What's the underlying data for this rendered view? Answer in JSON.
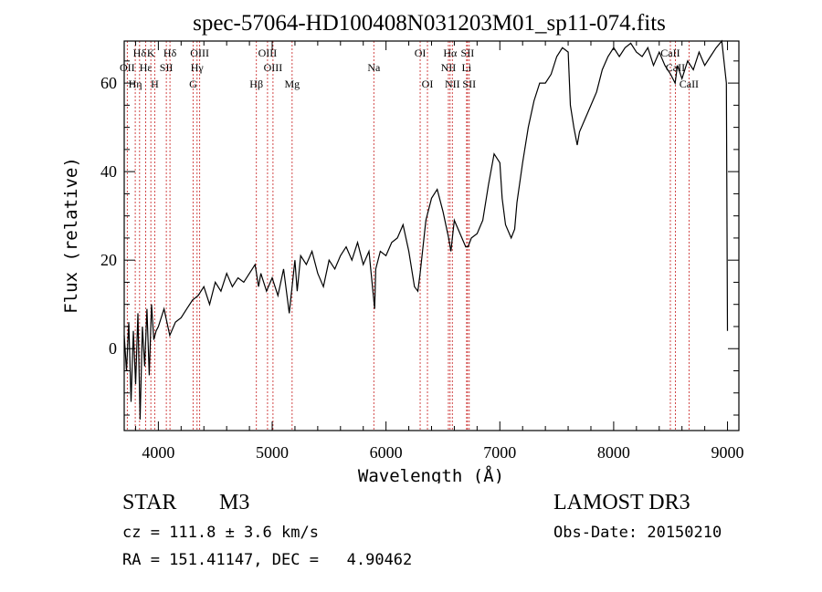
{
  "chart_data": {
    "type": "line",
    "title": "spec-57064-HD100408N031203M01_sp11-074.fits",
    "xlabel": "Wavelength (Å)",
    "ylabel": "Flux (relative)",
    "xlim": [
      3700,
      9100
    ],
    "ylim": [
      -18.5,
      69.5
    ],
    "xticks": [
      4000,
      5000,
      6000,
      7000,
      8000,
      9000
    ],
    "yticks": [
      0,
      20,
      40,
      60
    ],
    "xtick_labels": [
      "4000",
      "5000",
      "6000",
      "7000",
      "8000",
      "9000"
    ],
    "ytick_labels": [
      "0",
      "20",
      "40",
      "60"
    ],
    "series": [
      {
        "name": "spectrum",
        "x": [
          3700,
          3720,
          3740,
          3760,
          3780,
          3800,
          3820,
          3840,
          3860,
          3880,
          3900,
          3920,
          3940,
          3960,
          3980,
          4000,
          4050,
          4100,
          4150,
          4200,
          4250,
          4300,
          4350,
          4400,
          4450,
          4500,
          4550,
          4600,
          4650,
          4700,
          4750,
          4800,
          4850,
          4880,
          4900,
          4950,
          5000,
          5050,
          5100,
          5150,
          5200,
          5220,
          5250,
          5300,
          5350,
          5400,
          5450,
          5500,
          5550,
          5600,
          5650,
          5700,
          5750,
          5800,
          5850,
          5900,
          5910,
          5950,
          6000,
          6050,
          6100,
          6150,
          6200,
          6250,
          6280,
          6300,
          6350,
          6400,
          6450,
          6500,
          6550,
          6570,
          6600,
          6650,
          6700,
          6720,
          6750,
          6800,
          6850,
          6900,
          6950,
          7000,
          7020,
          7050,
          7100,
          7130,
          7150,
          7200,
          7250,
          7300,
          7350,
          7400,
          7450,
          7500,
          7550,
          7600,
          7620,
          7650,
          7680,
          7700,
          7750,
          7800,
          7850,
          7900,
          7950,
          8000,
          8050,
          8100,
          8150,
          8200,
          8250,
          8300,
          8350,
          8400,
          8450,
          8500,
          8540,
          8560,
          8600,
          8650,
          8700,
          8750,
          8800,
          8850,
          8900,
          8950,
          8990,
          9000
        ],
        "y": [
          3,
          -5,
          6,
          -12,
          4,
          -8,
          8,
          -16,
          5,
          -4,
          9,
          -6,
          10,
          2,
          4,
          5,
          9,
          3,
          6,
          7,
          9,
          11,
          12,
          14,
          10,
          15,
          13,
          17,
          14,
          16,
          15,
          17,
          19,
          14,
          17,
          13,
          16,
          12,
          18,
          8,
          20,
          13,
          21,
          19,
          22,
          17,
          14,
          20,
          18,
          21,
          23,
          20,
          24,
          19,
          22,
          9,
          18,
          22,
          21,
          24,
          25,
          28,
          22,
          14,
          13,
          17,
          29,
          34,
          36,
          31,
          25,
          22,
          29,
          26,
          23,
          23,
          25,
          26,
          29,
          37,
          44,
          42,
          34,
          28,
          25,
          27,
          33,
          42,
          50,
          56,
          60,
          60,
          62,
          66,
          68,
          67,
          55,
          50,
          46,
          49,
          52,
          55,
          58,
          63,
          66,
          68,
          66,
          68,
          69,
          67,
          66,
          68,
          64,
          67,
          64,
          62,
          60,
          64,
          61,
          65,
          63,
          67,
          64,
          66,
          68,
          70,
          60,
          4
        ]
      }
    ],
    "line_markers": [
      {
        "name": "Hδ",
        "wavelength": 3835,
        "row": 1
      },
      {
        "name": "OII",
        "wavelength": 3727,
        "row": 2
      },
      {
        "name": "Hε",
        "wavelength": 3889,
        "row": 2
      },
      {
        "name": "Hη",
        "wavelength": 3797,
        "row": 3
      },
      {
        "name": "K",
        "wavelength": 3934,
        "row": 1
      },
      {
        "name": "H",
        "wavelength": 3968,
        "row": 3
      },
      {
        "name": "SII",
        "wavelength": 4070,
        "row": 2
      },
      {
        "name": "Hδ",
        "wavelength": 4102,
        "row": 1
      },
      {
        "name": "OIII",
        "wavelength": 4363,
        "row": 1
      },
      {
        "name": "Hγ",
        "wavelength": 4340,
        "row": 2
      },
      {
        "name": "G",
        "wavelength": 4305,
        "row": 3
      },
      {
        "name": "OIII",
        "wavelength": 4959,
        "row": 1
      },
      {
        "name": "OIII",
        "wavelength": 5007,
        "row": 2
      },
      {
        "name": "Hβ",
        "wavelength": 4861,
        "row": 3
      },
      {
        "name": "Mg",
        "wavelength": 5175,
        "row": 3
      },
      {
        "name": "Na",
        "wavelength": 5893,
        "row": 2
      },
      {
        "name": "OI",
        "wavelength": 6300,
        "row": 1
      },
      {
        "name": "OI",
        "wavelength": 6364,
        "row": 3
      },
      {
        "name": "Hα",
        "wavelength": 6563,
        "row": 1
      },
      {
        "name": "NII",
        "wavelength": 6548,
        "row": 2
      },
      {
        "name": "NII",
        "wavelength": 6583,
        "row": 3
      },
      {
        "name": "SII",
        "wavelength": 6716,
        "row": 1
      },
      {
        "name": "Li",
        "wavelength": 6708,
        "row": 2
      },
      {
        "name": "SII",
        "wavelength": 6731,
        "row": 3
      },
      {
        "name": "CaII",
        "wavelength": 8498,
        "row": 1
      },
      {
        "name": "CaII",
        "wavelength": 8542,
        "row": 2
      },
      {
        "name": "CaII",
        "wavelength": 8662,
        "row": 3
      }
    ]
  },
  "info": {
    "class_label": "STAR",
    "subclass": "M3",
    "survey": "LAMOST DR3",
    "cz_line": "cz = 111.8 ± 3.6 km/s",
    "obs_date_line": "Obs-Date: 20150210",
    "radec_line": "RA = 151.41147, DEC =   4.90462"
  },
  "colors": {
    "spectrum": "#000000",
    "marker_line": "#cc3333",
    "axis": "#000000"
  }
}
